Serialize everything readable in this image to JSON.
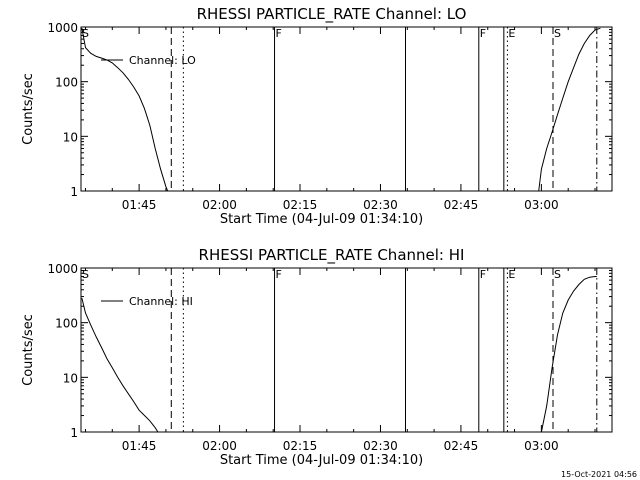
{
  "chart_data": [
    {
      "type": "line",
      "title": "RHESSI PARTICLE_RATE Channel: LO",
      "ylabel": "Counts/sec",
      "xlabel": "Start Time (04-Jul-09 01:34:10)",
      "yscale": "log",
      "ylim": [
        1,
        1000
      ],
      "xlim": [
        "01:34:10",
        "03:13:10"
      ],
      "x_ticks": [
        "01:45",
        "02:00",
        "02:15",
        "02:30",
        "02:45",
        "03:00"
      ],
      "y_ticks": [
        "1",
        "10",
        "100",
        "1000"
      ],
      "legend": [
        "Channel: LO"
      ],
      "legend_position": "top-left",
      "series": [
        {
          "name": "Channel: LO",
          "x": [
            "01:34:20",
            "01:35:00",
            "01:36:00",
            "01:37:00",
            "01:38:00",
            "01:39:00",
            "01:40:00",
            "01:41:00",
            "01:42:00",
            "01:43:00",
            "01:44:00",
            "01:45:00",
            "01:46:00",
            "01:47:00",
            "01:48:00",
            "01:49:00",
            "01:50:00",
            "01:50:20",
            null,
            "02:59:30",
            "03:00:00",
            "03:01:00",
            "03:02:00",
            "03:03:00",
            "03:04:00",
            "03:05:00",
            "03:06:00",
            "03:07:00",
            "03:08:00",
            "03:09:00",
            "03:10:00",
            "03:11:00"
          ],
          "y": [
            950,
            420,
            330,
            290,
            270,
            250,
            220,
            180,
            145,
            110,
            80,
            55,
            32,
            16,
            6,
            2.5,
            1.2,
            1,
            null,
            1,
            2.5,
            6,
            12,
            25,
            50,
            100,
            180,
            320,
            500,
            700,
            880,
            950
          ]
        }
      ],
      "markers": [
        {
          "label": "S",
          "time": "01:34:10",
          "style": "dashed"
        },
        {
          "label": "",
          "time": "01:51:00",
          "style": "dashed"
        },
        {
          "label": "",
          "time": "01:53:15",
          "style": "dotted"
        },
        {
          "label": "F",
          "time": "02:10:15",
          "style": "solid"
        },
        {
          "label": "",
          "time": "02:34:40",
          "style": "solid"
        },
        {
          "label": "F",
          "time": "02:48:20",
          "style": "solid"
        },
        {
          "label": "",
          "time": "02:53:00",
          "style": "solid"
        },
        {
          "label": "E",
          "time": "02:53:40",
          "style": "dotted"
        },
        {
          "label": "S",
          "time": "03:02:10",
          "style": "dashed"
        },
        {
          "label": "",
          "time": "03:10:20",
          "style": "dashdot"
        }
      ]
    },
    {
      "type": "line",
      "title": "RHESSI PARTICLE_RATE Channel: HI",
      "ylabel": "Counts/sec",
      "xlabel": "Start Time (04-Jul-09 01:34:10)",
      "yscale": "log",
      "ylim": [
        1,
        1000
      ],
      "xlim": [
        "01:34:10",
        "03:13:10"
      ],
      "x_ticks": [
        "01:45",
        "02:00",
        "02:15",
        "02:30",
        "02:45",
        "03:00"
      ],
      "y_ticks": [
        "1",
        "10",
        "100",
        "1000"
      ],
      "legend": [
        "Channel: HI"
      ],
      "legend_position": "top-left",
      "series": [
        {
          "name": "Channel: HI",
          "x": [
            "01:34:20",
            "01:35:00",
            "01:36:00",
            "01:37:00",
            "01:38:00",
            "01:39:00",
            "01:40:00",
            "01:41:00",
            "01:42:00",
            "01:43:00",
            "01:44:00",
            "01:45:00",
            "01:46:00",
            "01:47:00",
            "01:48:00",
            "01:48:30",
            null,
            "03:00:00",
            "03:01:00",
            "03:02:00",
            "03:03:00",
            "03:04:00",
            "03:05:00",
            "03:06:00",
            "03:07:00",
            "03:08:00",
            "03:09:00",
            "03:10:00",
            "03:10:20"
          ],
          "y": [
            280,
            150,
            90,
            55,
            35,
            22,
            15,
            10,
            7,
            5,
            3.6,
            2.5,
            2,
            1.6,
            1.2,
            1,
            null,
            1,
            3,
            15,
            60,
            150,
            260,
            380,
            500,
            620,
            680,
            700,
            700
          ]
        }
      ],
      "markers": [
        {
          "label": "S",
          "time": "01:34:10",
          "style": "dashed"
        },
        {
          "label": "",
          "time": "01:51:00",
          "style": "dashed"
        },
        {
          "label": "",
          "time": "01:53:15",
          "style": "dotted"
        },
        {
          "label": "F",
          "time": "02:10:15",
          "style": "solid"
        },
        {
          "label": "",
          "time": "02:34:40",
          "style": "solid"
        },
        {
          "label": "F",
          "time": "02:48:20",
          "style": "solid"
        },
        {
          "label": "",
          "time": "02:53:00",
          "style": "solid"
        },
        {
          "label": "E",
          "time": "02:53:40",
          "style": "dotted"
        },
        {
          "label": "S",
          "time": "03:02:10",
          "style": "dashed"
        },
        {
          "label": "",
          "time": "03:10:20",
          "style": "dashdot"
        }
      ]
    }
  ],
  "footer": {
    "timestamp": "15-Oct-2021 04:56"
  }
}
